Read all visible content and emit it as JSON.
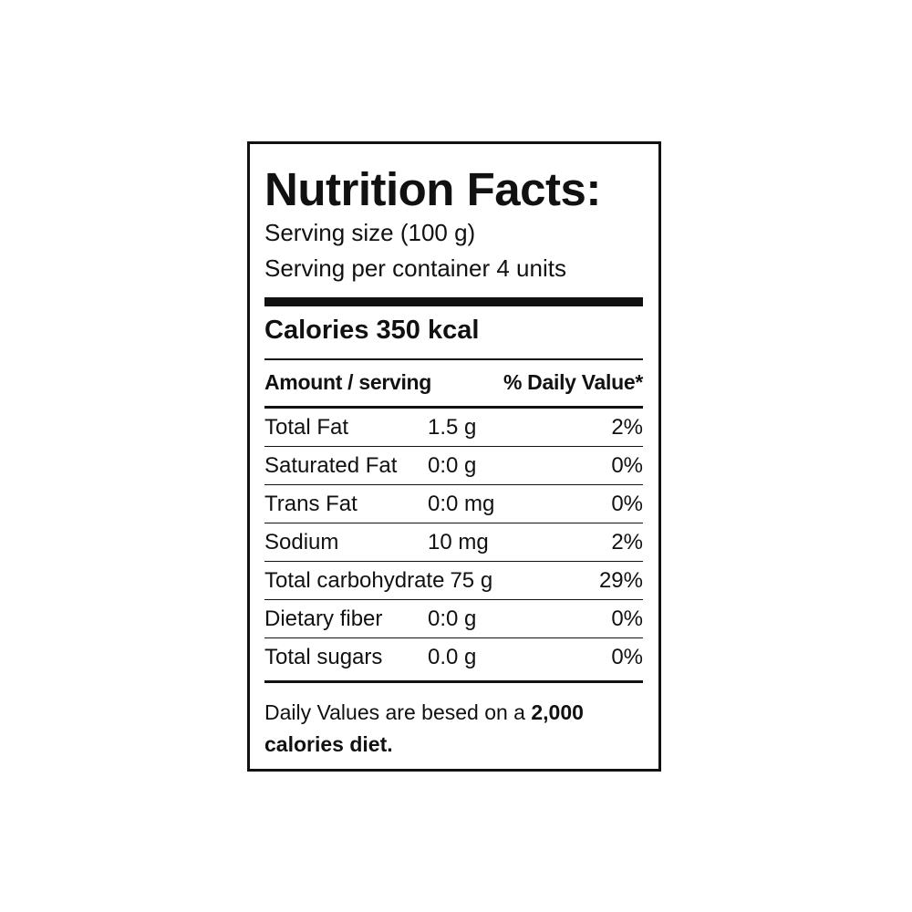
{
  "title": "Nutrition Facts:",
  "serving_size": "Serving size (100 g)",
  "servings_per_container": "Serving per container 4 units",
  "calories": "Calories 350 kcal",
  "header": {
    "amount": "Amount / serving",
    "daily_value": "% Daily Value*"
  },
  "rows": [
    {
      "name": "Total Fat",
      "amount": "1.5 g",
      "dv": "2%"
    },
    {
      "name": "Saturated Fat",
      "amount": "0:0 g",
      "dv": "0%"
    },
    {
      "name": "Trans Fat",
      "amount": "0:0 mg",
      "dv": "0%"
    },
    {
      "name": "Sodium",
      "amount": "10 mg",
      "dv": "2%"
    },
    {
      "name": "Total carbohydrate",
      "amount": "75 g",
      "dv": "29%"
    },
    {
      "name": "Dietary fiber",
      "amount": "0:0 g",
      "dv": "0%"
    },
    {
      "name": "Total sugars",
      "amount": "0.0 g",
      "dv": "0%"
    }
  ],
  "footer": {
    "text": "Daily Values are besed on a ",
    "bold": "2,000 calories diet."
  }
}
